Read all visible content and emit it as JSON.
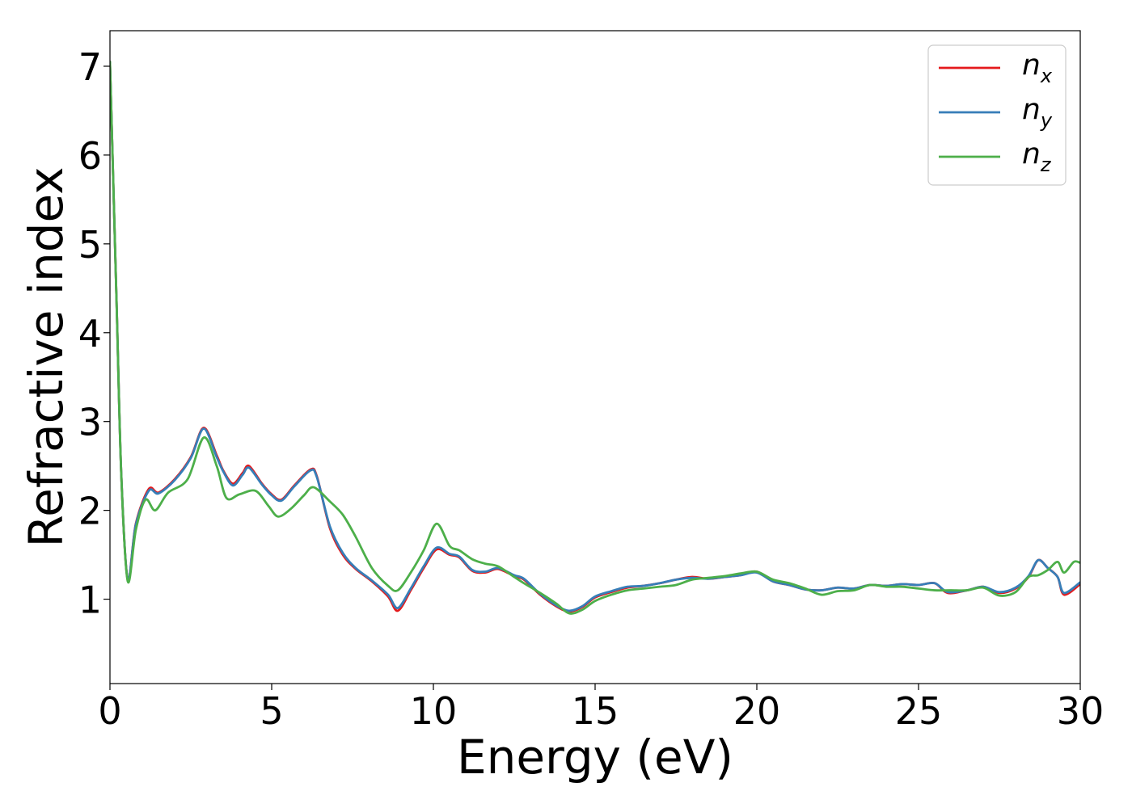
{
  "chart_data": {
    "type": "line",
    "title": "",
    "xlabel": "Energy (eV)",
    "ylabel": "Refractive index",
    "xlim": [
      0,
      30
    ],
    "ylim": [
      0.05,
      7.4
    ],
    "xticks": [
      0,
      5,
      10,
      15,
      20,
      25,
      30
    ],
    "yticks": [
      1,
      2,
      3,
      4,
      5,
      6,
      7
    ],
    "grid": false,
    "legend_position": "top-right",
    "series": [
      {
        "name": "n",
        "subscript": "x",
        "color": "#e41a1c",
        "points": [
          [
            0,
            7.05
          ],
          [
            0.2,
            4.4
          ],
          [
            0.35,
            2.4
          ],
          [
            0.55,
            1.22
          ],
          [
            0.8,
            1.85
          ],
          [
            1.2,
            2.24
          ],
          [
            1.5,
            2.2
          ],
          [
            2,
            2.35
          ],
          [
            2.5,
            2.6
          ],
          [
            2.9,
            2.93
          ],
          [
            3.3,
            2.62
          ],
          [
            3.5,
            2.45
          ],
          [
            3.8,
            2.3
          ],
          [
            4.1,
            2.42
          ],
          [
            4.3,
            2.5
          ],
          [
            4.7,
            2.3
          ],
          [
            5,
            2.18
          ],
          [
            5.3,
            2.12
          ],
          [
            5.7,
            2.28
          ],
          [
            6.2,
            2.46
          ],
          [
            6.4,
            2.38
          ],
          [
            6.8,
            1.8
          ],
          [
            7.2,
            1.5
          ],
          [
            7.6,
            1.34
          ],
          [
            8.1,
            1.2
          ],
          [
            8.6,
            1.03
          ],
          [
            8.9,
            0.87
          ],
          [
            9.3,
            1.1
          ],
          [
            9.7,
            1.35
          ],
          [
            10.1,
            1.56
          ],
          [
            10.5,
            1.5
          ],
          [
            10.8,
            1.47
          ],
          [
            11.2,
            1.32
          ],
          [
            11.6,
            1.3
          ],
          [
            12,
            1.34
          ],
          [
            12.5,
            1.26
          ],
          [
            12.8,
            1.22
          ],
          [
            13.3,
            1.05
          ],
          [
            13.8,
            0.92
          ],
          [
            14.2,
            0.86
          ],
          [
            14.6,
            0.91
          ],
          [
            15,
            1.02
          ],
          [
            15.5,
            1.08
          ],
          [
            16,
            1.13
          ],
          [
            16.5,
            1.15
          ],
          [
            17,
            1.18
          ],
          [
            17.5,
            1.22
          ],
          [
            18,
            1.25
          ],
          [
            18.5,
            1.23
          ],
          [
            19,
            1.25
          ],
          [
            19.5,
            1.27
          ],
          [
            20,
            1.31
          ],
          [
            20.5,
            1.2
          ],
          [
            21,
            1.16
          ],
          [
            21.5,
            1.11
          ],
          [
            22,
            1.1
          ],
          [
            22.5,
            1.13
          ],
          [
            23,
            1.12
          ],
          [
            23.5,
            1.16
          ],
          [
            24,
            1.15
          ],
          [
            24.5,
            1.17
          ],
          [
            25,
            1.16
          ],
          [
            25.5,
            1.18
          ],
          [
            25.9,
            1.07
          ],
          [
            26.5,
            1.1
          ],
          [
            27,
            1.14
          ],
          [
            27.5,
            1.07
          ],
          [
            28,
            1.12
          ],
          [
            28.4,
            1.25
          ],
          [
            28.7,
            1.44
          ],
          [
            29,
            1.35
          ],
          [
            29.3,
            1.25
          ],
          [
            29.5,
            1.05
          ],
          [
            30,
            1.17
          ]
        ]
      },
      {
        "name": "n",
        "subscript": "y",
        "color": "#377eb8",
        "points": [
          [
            0,
            7.05
          ],
          [
            0.2,
            4.4
          ],
          [
            0.35,
            2.4
          ],
          [
            0.55,
            1.22
          ],
          [
            0.8,
            1.84
          ],
          [
            1.2,
            2.22
          ],
          [
            1.5,
            2.19
          ],
          [
            2,
            2.34
          ],
          [
            2.5,
            2.59
          ],
          [
            2.9,
            2.92
          ],
          [
            3.3,
            2.6
          ],
          [
            3.5,
            2.44
          ],
          [
            3.8,
            2.28
          ],
          [
            4.1,
            2.4
          ],
          [
            4.3,
            2.48
          ],
          [
            4.7,
            2.29
          ],
          [
            5,
            2.17
          ],
          [
            5.3,
            2.11
          ],
          [
            5.7,
            2.27
          ],
          [
            6.2,
            2.45
          ],
          [
            6.4,
            2.37
          ],
          [
            6.8,
            1.82
          ],
          [
            7.2,
            1.52
          ],
          [
            7.6,
            1.35
          ],
          [
            8.1,
            1.21
          ],
          [
            8.6,
            1.05
          ],
          [
            8.9,
            0.9
          ],
          [
            9.3,
            1.12
          ],
          [
            9.7,
            1.37
          ],
          [
            10.1,
            1.58
          ],
          [
            10.5,
            1.51
          ],
          [
            10.8,
            1.48
          ],
          [
            11.2,
            1.33
          ],
          [
            11.6,
            1.31
          ],
          [
            12,
            1.35
          ],
          [
            12.5,
            1.27
          ],
          [
            12.8,
            1.23
          ],
          [
            13.3,
            1.06
          ],
          [
            13.8,
            0.93
          ],
          [
            14.2,
            0.87
          ],
          [
            14.6,
            0.92
          ],
          [
            15,
            1.03
          ],
          [
            15.5,
            1.09
          ],
          [
            16,
            1.14
          ],
          [
            16.5,
            1.15
          ],
          [
            17,
            1.18
          ],
          [
            17.5,
            1.22
          ],
          [
            18,
            1.24
          ],
          [
            18.5,
            1.23
          ],
          [
            19,
            1.25
          ],
          [
            19.5,
            1.27
          ],
          [
            20,
            1.3
          ],
          [
            20.5,
            1.2
          ],
          [
            21,
            1.16
          ],
          [
            21.5,
            1.11
          ],
          [
            22,
            1.1
          ],
          [
            22.5,
            1.13
          ],
          [
            23,
            1.12
          ],
          [
            23.5,
            1.16
          ],
          [
            24,
            1.15
          ],
          [
            24.5,
            1.17
          ],
          [
            25,
            1.16
          ],
          [
            25.5,
            1.18
          ],
          [
            25.9,
            1.08
          ],
          [
            26.5,
            1.1
          ],
          [
            27,
            1.14
          ],
          [
            27.5,
            1.08
          ],
          [
            28,
            1.13
          ],
          [
            28.4,
            1.26
          ],
          [
            28.7,
            1.44
          ],
          [
            29,
            1.35
          ],
          [
            29.3,
            1.25
          ],
          [
            29.5,
            1.07
          ],
          [
            30,
            1.19
          ]
        ]
      },
      {
        "name": "n",
        "subscript": "z",
        "color": "#4daf4a",
        "points": [
          [
            0,
            7.05
          ],
          [
            0.2,
            4.4
          ],
          [
            0.35,
            2.4
          ],
          [
            0.55,
            1.2
          ],
          [
            0.8,
            1.78
          ],
          [
            1.1,
            2.12
          ],
          [
            1.4,
            2.0
          ],
          [
            1.8,
            2.2
          ],
          [
            2.4,
            2.35
          ],
          [
            2.9,
            2.82
          ],
          [
            3.3,
            2.5
          ],
          [
            3.6,
            2.14
          ],
          [
            4,
            2.18
          ],
          [
            4.5,
            2.22
          ],
          [
            4.9,
            2.05
          ],
          [
            5.2,
            1.93
          ],
          [
            5.6,
            2.02
          ],
          [
            6,
            2.17
          ],
          [
            6.3,
            2.26
          ],
          [
            6.8,
            2.1
          ],
          [
            7.2,
            1.95
          ],
          [
            7.6,
            1.7
          ],
          [
            8.1,
            1.35
          ],
          [
            8.6,
            1.15
          ],
          [
            8.9,
            1.1
          ],
          [
            9.3,
            1.3
          ],
          [
            9.7,
            1.55
          ],
          [
            10.1,
            1.85
          ],
          [
            10.5,
            1.6
          ],
          [
            10.8,
            1.55
          ],
          [
            11.2,
            1.45
          ],
          [
            11.6,
            1.4
          ],
          [
            12,
            1.37
          ],
          [
            12.5,
            1.25
          ],
          [
            12.8,
            1.18
          ],
          [
            13.3,
            1.07
          ],
          [
            13.8,
            0.95
          ],
          [
            14.2,
            0.84
          ],
          [
            14.6,
            0.88
          ],
          [
            15,
            0.98
          ],
          [
            15.5,
            1.05
          ],
          [
            16,
            1.1
          ],
          [
            16.5,
            1.12
          ],
          [
            17,
            1.14
          ],
          [
            17.5,
            1.16
          ],
          [
            18,
            1.22
          ],
          [
            18.5,
            1.24
          ],
          [
            19,
            1.26
          ],
          [
            19.5,
            1.29
          ],
          [
            20,
            1.31
          ],
          [
            20.5,
            1.22
          ],
          [
            21,
            1.18
          ],
          [
            21.5,
            1.12
          ],
          [
            22,
            1.05
          ],
          [
            22.5,
            1.09
          ],
          [
            23,
            1.1
          ],
          [
            23.5,
            1.16
          ],
          [
            24,
            1.14
          ],
          [
            24.5,
            1.14
          ],
          [
            25,
            1.12
          ],
          [
            25.5,
            1.1
          ],
          [
            26,
            1.1
          ],
          [
            26.5,
            1.1
          ],
          [
            27,
            1.13
          ],
          [
            27.5,
            1.04
          ],
          [
            28,
            1.08
          ],
          [
            28.4,
            1.25
          ],
          [
            28.7,
            1.27
          ],
          [
            29,
            1.33
          ],
          [
            29.3,
            1.42
          ],
          [
            29.5,
            1.3
          ],
          [
            29.8,
            1.42
          ],
          [
            30,
            1.41
          ]
        ]
      }
    ]
  }
}
